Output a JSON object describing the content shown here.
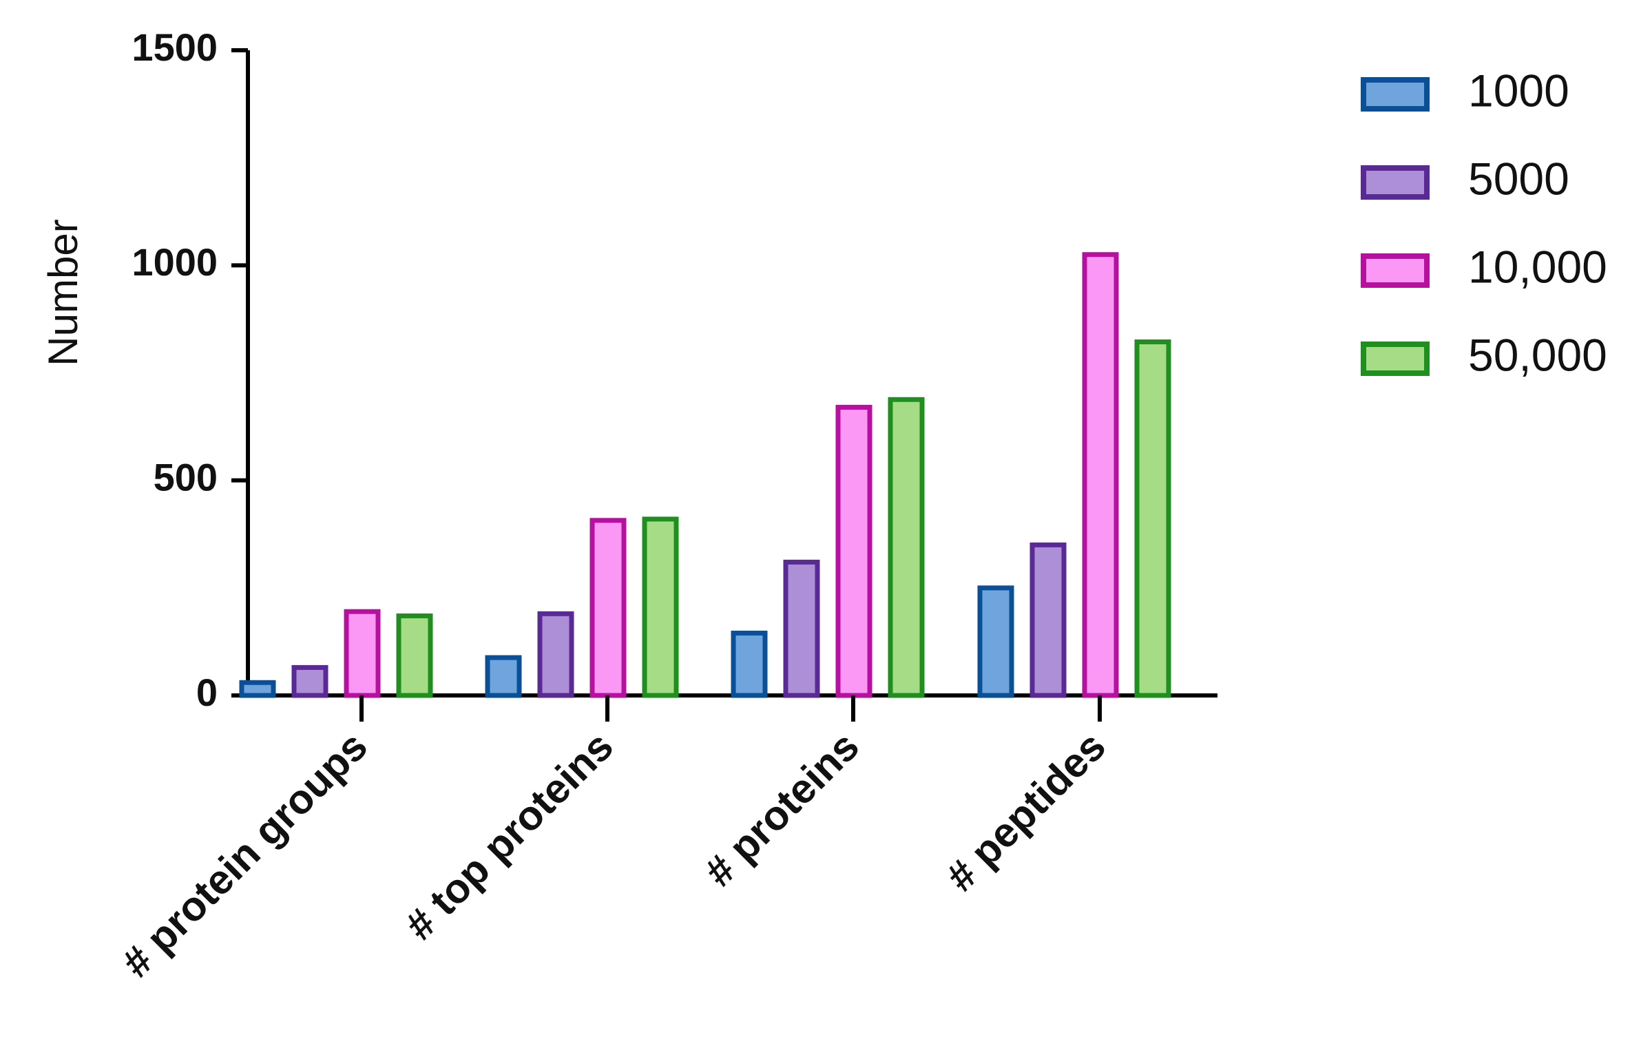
{
  "chart_data": {
    "type": "bar",
    "title": "",
    "xlabel": "",
    "ylabel": "Number",
    "ylim": [
      0,
      1500
    ],
    "yticks": [
      0,
      500,
      1000,
      1500
    ],
    "categories": [
      "# protein groups",
      "# top proteins",
      "# proteins",
      "# peptides"
    ],
    "series": [
      {
        "name": "1000",
        "values": [
          30,
          88,
          145,
          250
        ],
        "fill": "#6fa4dc",
        "stroke": "#0b4f97"
      },
      {
        "name": "5000",
        "values": [
          65,
          190,
          310,
          350
        ],
        "fill": "#ac8fd6",
        "stroke": "#5a2a94"
      },
      {
        "name": "10,000",
        "values": [
          195,
          407,
          670,
          1025
        ],
        "fill": "#fb98f5",
        "stroke": "#b5119e"
      },
      {
        "name": "50,000",
        "values": [
          185,
          410,
          688,
          822
        ],
        "fill": "#a6dc86",
        "stroke": "#1f8f1f"
      }
    ],
    "grid": false,
    "legend_position": "top-right"
  }
}
